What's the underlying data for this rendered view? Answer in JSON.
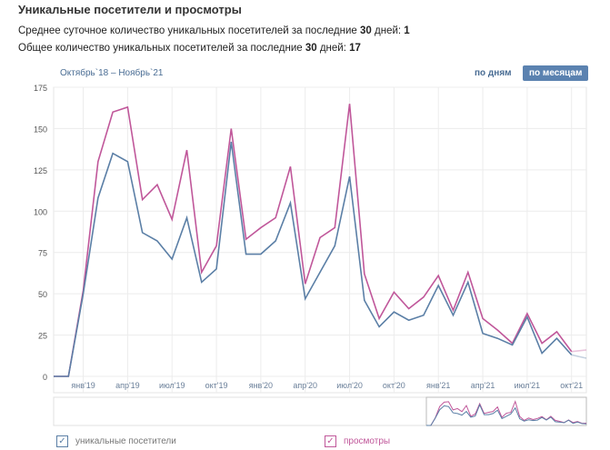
{
  "header": {
    "title": "Уникальные посетители и просмотры",
    "avg_prefix": "Среднее суточное количество уникальных посетителей за последние ",
    "avg_days": "30",
    "avg_mid": " дней: ",
    "avg_value": "1",
    "total_prefix": "Общее количество уникальных посетителей за последние ",
    "total_days": "30",
    "total_mid": " дней: ",
    "total_value": "17"
  },
  "controls": {
    "range": "Октябрь`18 – Ноябрь`21",
    "by_day": "по дням",
    "by_month": "по месяцам"
  },
  "legend": {
    "visitors": "уникальные посетители",
    "views": "просмотры"
  },
  "colors": {
    "visitors": "#5b7fa6",
    "views": "#c0579a"
  },
  "chart_data": {
    "type": "line",
    "ylim": [
      0,
      175
    ],
    "yticks": [
      "0",
      "25",
      "50",
      "75",
      "100",
      "125",
      "150",
      "175"
    ],
    "xticks": [
      "янв'19",
      "апр'19",
      "июл'19",
      "окт'19",
      "янв'20",
      "апр'20",
      "июл'20",
      "окт'20",
      "янв'21",
      "апр'21",
      "июл'21",
      "окт'21"
    ],
    "series": [
      {
        "name": "уникальные посетители",
        "values": [
          0,
          0,
          50,
          108,
          135,
          130,
          87,
          82,
          71,
          96,
          57,
          65,
          142,
          74,
          74,
          82,
          105,
          47,
          63,
          79,
          121,
          46,
          30,
          39,
          34,
          37,
          55,
          37,
          57,
          26,
          23,
          19,
          36,
          14,
          23,
          13,
          11
        ]
      },
      {
        "name": "просмотры",
        "values": [
          0,
          0,
          52,
          130,
          160,
          163,
          107,
          116,
          95,
          137,
          63,
          79,
          150,
          83,
          90,
          96,
          127,
          56,
          84,
          90,
          165,
          62,
          35,
          51,
          41,
          48,
          61,
          40,
          63,
          35,
          28,
          20,
          38,
          20,
          27,
          15,
          16
        ]
      }
    ]
  }
}
